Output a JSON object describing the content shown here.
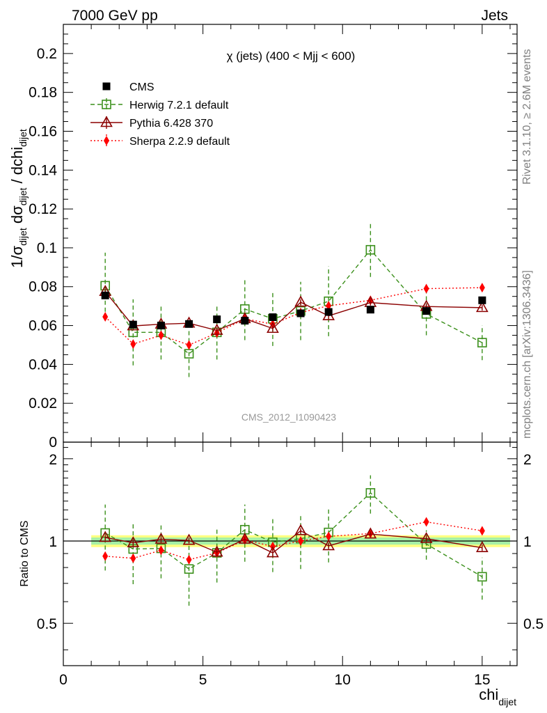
{
  "header": {
    "left": "7000 GeV pp",
    "right": "Jets"
  },
  "side_text": {
    "rivet": "Rivet 3.1.10, ≥ 2.6M events",
    "mcplots": "mcplots.cern.ch [arXiv:1306.3436]"
  },
  "chart_data": [
    {
      "type": "scatter",
      "title": "χ (jets) (400 < Mjj <  600)",
      "watermark": "CMS_2012_I1090423",
      "ylabel_parts": {
        "prefix": "1/σ",
        "sub1": "dijet",
        "mid": " dσ",
        "sub2": "dijet",
        "mid2": " / dchi",
        "sub3": "dijet"
      },
      "xlabel": "chi",
      "xlabel_sub": "dijet",
      "xlim": [
        0,
        16.25
      ],
      "ylim": [
        0,
        0.215
      ],
      "yticks": [
        "0",
        "0.02",
        "0.04",
        "0.06",
        "0.08",
        "0.1",
        "0.12",
        "0.14",
        "0.16",
        "0.18",
        "0.2"
      ],
      "ytick_values": [
        0,
        0.02,
        0.04,
        0.06,
        0.08,
        0.1,
        0.12,
        0.14,
        0.16,
        0.18,
        0.2
      ],
      "x": [
        1.5,
        2.5,
        3.5,
        4.5,
        5.5,
        6.5,
        7.5,
        8.5,
        9.5,
        11,
        13,
        15
      ],
      "series": [
        {
          "name": "CMS",
          "marker": "square",
          "color": "#000000",
          "values": [
            0.0755,
            0.0605,
            0.06,
            0.0608,
            0.0632,
            0.0625,
            0.0643,
            0.0663,
            0.067,
            0.0682,
            0.0675,
            0.073
          ],
          "errors": [
            0,
            0,
            0,
            0,
            0,
            0,
            0,
            0,
            0,
            0,
            0,
            0
          ]
        },
        {
          "name": "Herwig 7.2.1 default",
          "marker": "open-square",
          "line": "dashed",
          "color": "#3a8f1a",
          "values": [
            0.0805,
            0.0565,
            0.0565,
            0.0455,
            0.0565,
            0.0685,
            0.0635,
            0.0675,
            0.0725,
            0.099,
            0.066,
            0.0512
          ],
          "errors": [
            0.017,
            0.017,
            0.014,
            0.012,
            0.014,
            0.016,
            0.014,
            0.015,
            0.018,
            0.014,
            0.011,
            0.009
          ]
        },
        {
          "name": "Pythia 6.428 370",
          "marker": "open-triangle",
          "line": "solid",
          "color": "#8b0000",
          "values": [
            0.0775,
            0.0598,
            0.0607,
            0.0612,
            0.0575,
            0.0635,
            0.0585,
            0.072,
            0.065,
            0.0718,
            0.0698,
            0.0692
          ],
          "errors": [
            0.0015,
            0.0015,
            0.0015,
            0.0015,
            0.0015,
            0.0015,
            0.0015,
            0.0015,
            0.0015,
            0.0015,
            0.0015,
            0.0015
          ]
        },
        {
          "name": "Sherpa 2.2.9 default",
          "marker": "diamond",
          "line": "dotted",
          "color": "#ff0000",
          "values": [
            0.0645,
            0.0505,
            0.055,
            0.05,
            0.0562,
            0.0635,
            0.0607,
            0.0667,
            0.0702,
            0.073,
            0.079,
            0.0795
          ],
          "errors": [
            0.002,
            0.002,
            0.002,
            0.002,
            0.002,
            0.002,
            0.002,
            0.002,
            0.002,
            0.002,
            0.002,
            0.002
          ]
        }
      ]
    },
    {
      "type": "scatter",
      "ylabel": "Ratio to CMS",
      "xlim": [
        0,
        16.25
      ],
      "ylim": [
        0.35,
        2.3
      ],
      "yticks": [
        "0.5",
        "1",
        "2"
      ],
      "ytick_values": [
        0.5,
        1,
        2
      ],
      "xticks": [
        "0",
        "5",
        "10",
        "15"
      ],
      "xtick_values": [
        0,
        5,
        10,
        15
      ],
      "band": {
        "x_range": [
          1,
          16
        ],
        "inner": [
          0.97,
          1.03
        ],
        "outer": [
          0.95,
          1.05
        ]
      },
      "x": [
        1.5,
        2.5,
        3.5,
        4.5,
        5.5,
        6.5,
        7.5,
        8.5,
        9.5,
        11,
        13,
        15
      ],
      "series": [
        {
          "name": "Herwig 7.2.1 default",
          "values": [
            1.07,
            0.935,
            0.94,
            0.79,
            0.905,
            1.1,
            0.99,
            1.02,
            1.075,
            1.5,
            0.975,
            0.74
          ],
          "errors": [
            0.29,
            0.24,
            0.21,
            0.21,
            0.2,
            0.26,
            0.22,
            0.23,
            0.24,
            0.24,
            0.12,
            0.13
          ]
        },
        {
          "name": "Pythia 6.428 370",
          "values": [
            1.03,
            0.985,
            1.015,
            1.005,
            0.91,
            1.015,
            0.905,
            1.09,
            0.96,
            1.06,
            1.02,
            0.945
          ],
          "errors": [
            0.025,
            0.025,
            0.025,
            0.025,
            0.025,
            0.025,
            0.025,
            0.025,
            0.025,
            0.025,
            0.025,
            0.025
          ]
        },
        {
          "name": "Sherpa 2.2.9 default",
          "values": [
            0.88,
            0.865,
            0.925,
            0.855,
            0.905,
            1.01,
            0.955,
            1.0,
            1.04,
            1.065,
            1.175,
            1.09
          ],
          "errors": [
            0.02,
            0.02,
            0.02,
            0.02,
            0.02,
            0.02,
            0.02,
            0.02,
            0.02,
            0.02,
            0.02,
            0.02
          ]
        }
      ]
    }
  ]
}
